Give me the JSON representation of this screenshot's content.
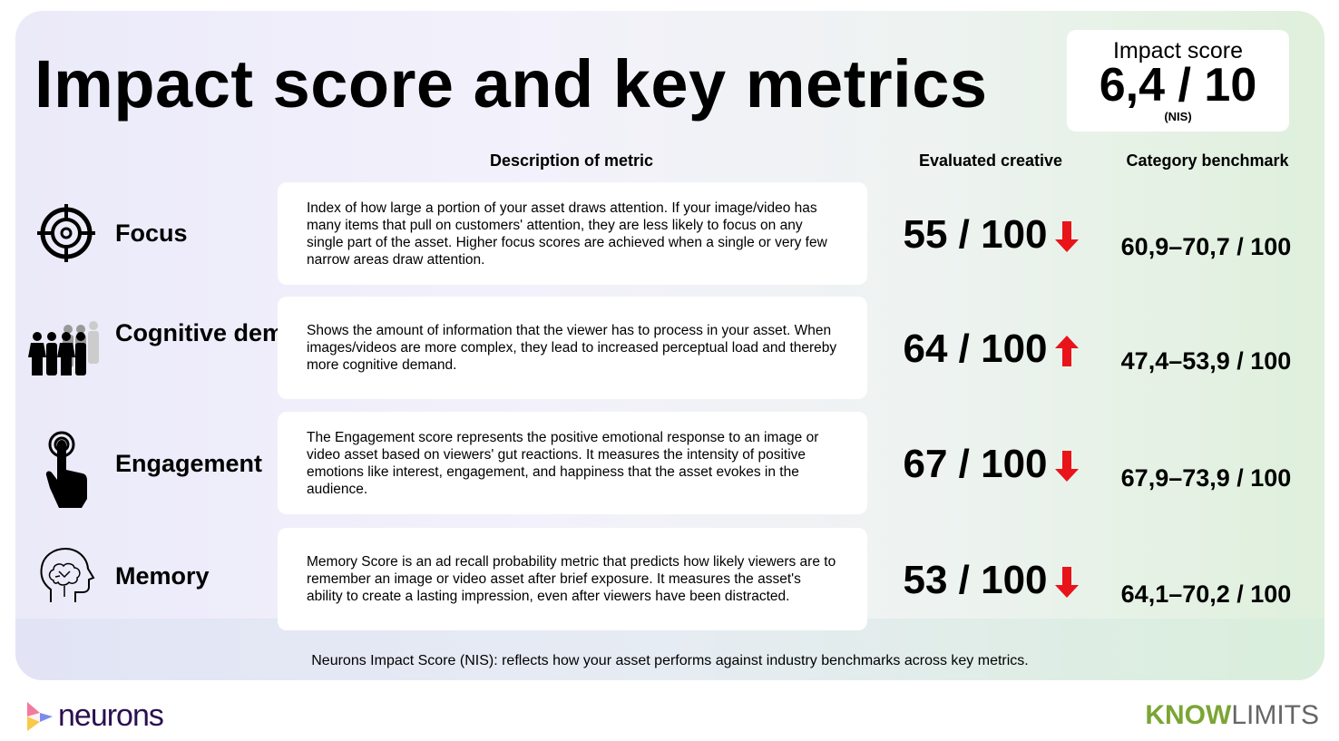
{
  "title": "Impact score and key metrics",
  "impact": {
    "label": "Impact score",
    "value": "6,4 / 10",
    "abbr": "(NIS)"
  },
  "headers": {
    "description": "Description of metric",
    "evaluated": "Evaluated creative",
    "benchmark": "Category benchmark"
  },
  "metrics": [
    {
      "name": "Focus",
      "icon": "target-icon",
      "description": "Index of how large a portion of your asset draws attention. If your image/video has many items that pull on customers' attention, they are less likely to focus on any single part of the asset. Higher focus scores are achieved when a single or very few narrow areas draw attention.",
      "score": "55 / 100",
      "trend": "down",
      "benchmark": "60,9–70,7 / 100"
    },
    {
      "name": "Cognitive demand",
      "icon": "crowd-icon",
      "description": "Shows the amount of information that the viewer has to process in your asset. When images/videos are more complex, they lead to increased perceptual load and thereby more cognitive demand.",
      "score": "64 / 100",
      "trend": "up",
      "benchmark": "47,4–53,9 / 100"
    },
    {
      "name": "Engagement",
      "icon": "touch-hand-icon",
      "description": "The Engagement score represents the positive emotional response to an image or video asset based on viewers' gut reactions. It measures the intensity of positive emotions like interest, engagement, and happiness that the asset evokes in the audience.",
      "score": "67 / 100",
      "trend": "down",
      "benchmark": "67,9–73,9 / 100"
    },
    {
      "name": "Memory",
      "icon": "brain-head-icon",
      "description": "Memory Score is an ad recall probability metric that predicts how likely viewers are to remember an image or video asset after brief exposure. It measures the asset's ability to create a lasting impression, even after viewers have been distracted.",
      "score": "53 / 100",
      "trend": "down",
      "benchmark": "64,1–70,2 / 100"
    }
  ],
  "footnote": "Neurons Impact Score (NIS): reflects how your asset performs against industry benchmarks across key metrics.",
  "logos": {
    "left": "neurons",
    "right_bold": "KNOW",
    "right_light": "LIMITS"
  },
  "colors": {
    "arrow": "#e8141a",
    "know": "#7aa534",
    "neurons": "#2a1050"
  }
}
